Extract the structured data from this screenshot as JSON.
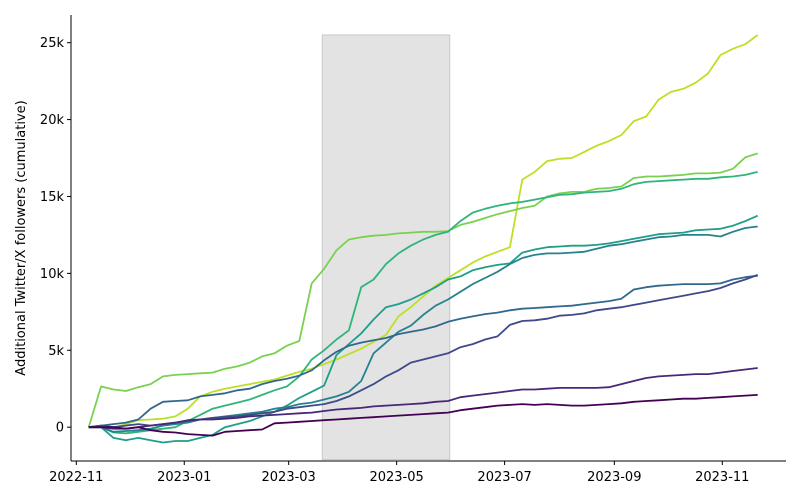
{
  "chart_data": {
    "type": "line",
    "title": "",
    "xlabel": "",
    "ylabel": "Additional Twitter/X followers (cumulative)",
    "xlim": [
      "2022-10-29",
      "2023-12-07"
    ],
    "ylim": [
      -2200,
      26800
    ],
    "x_ticks": [
      {
        "date": "2022-11-01",
        "label": "2022-11"
      },
      {
        "date": "2023-01-01",
        "label": "2023-01"
      },
      {
        "date": "2023-03-01",
        "label": "2023-03"
      },
      {
        "date": "2023-05-01",
        "label": "2023-05"
      },
      {
        "date": "2023-07-01",
        "label": "2023-07"
      },
      {
        "date": "2023-09-01",
        "label": "2023-09"
      },
      {
        "date": "2023-11-01",
        "label": "2023-11"
      }
    ],
    "y_ticks": [
      {
        "value": 0,
        "label": "0"
      },
      {
        "value": 5000,
        "label": "5k"
      },
      {
        "value": 10000,
        "label": "10k"
      },
      {
        "value": 15000,
        "label": "15k"
      },
      {
        "value": 20000,
        "label": "20k"
      },
      {
        "value": 25000,
        "label": "25k"
      }
    ],
    "highlight_span": {
      "start": "2023-03-20",
      "end": "2023-05-31",
      "color": "#e3e3e3"
    },
    "grid": false,
    "legend": "none",
    "dates": [
      "2022-11-08",
      "2022-11-15",
      "2022-11-22",
      "2022-11-29",
      "2022-12-06",
      "2022-12-13",
      "2022-12-20",
      "2022-12-27",
      "2023-01-03",
      "2023-01-10",
      "2023-01-17",
      "2023-01-24",
      "2023-01-31",
      "2023-02-07",
      "2023-02-14",
      "2023-02-21",
      "2023-02-28",
      "2023-03-07",
      "2023-03-14",
      "2023-03-21",
      "2023-03-28",
      "2023-04-04",
      "2023-04-11",
      "2023-04-18",
      "2023-04-25",
      "2023-05-02",
      "2023-05-09",
      "2023-05-16",
      "2023-05-23",
      "2023-05-30",
      "2023-06-06",
      "2023-06-13",
      "2023-06-20",
      "2023-06-27",
      "2023-07-04",
      "2023-07-11",
      "2023-07-18",
      "2023-07-25",
      "2023-08-01",
      "2023-08-08",
      "2023-08-15",
      "2023-08-22",
      "2023-08-29",
      "2023-09-05",
      "2023-09-12",
      "2023-09-19",
      "2023-09-26",
      "2023-10-03",
      "2023-10-10",
      "2023-10-17",
      "2023-10-24",
      "2023-10-31",
      "2023-11-07",
      "2023-11-14",
      "2023-11-21"
    ],
    "series": [
      {
        "color": "#bddf26",
        "values": [
          0,
          100,
          -50,
          200,
          450,
          500,
          550,
          700,
          1200,
          2000,
          2300,
          2500,
          2650,
          2800,
          2950,
          3100,
          3350,
          3600,
          3800,
          4100,
          4400,
          4750,
          5100,
          5550,
          6000,
          7200,
          7800,
          8500,
          9200,
          9700,
          10200,
          10700,
          11100,
          11400,
          11700,
          16100,
          16600,
          17300,
          17450,
          17500,
          17900,
          18300,
          18600,
          19000,
          19900,
          20200,
          21300,
          21800,
          22000,
          22400,
          23000,
          24200,
          24600,
          24900,
          25500
        ]
      },
      {
        "color": "#7ad151",
        "values": [
          0,
          2650,
          2450,
          2350,
          2600,
          2800,
          3300,
          3400,
          3450,
          3500,
          3550,
          3800,
          3950,
          4200,
          4600,
          4800,
          5300,
          5600,
          9350,
          10300,
          11500,
          12200,
          12350,
          12450,
          12500,
          12600,
          12650,
          12700,
          12700,
          12750,
          13150,
          13350,
          13600,
          13850,
          14050,
          14250,
          14400,
          15000,
          15200,
          15300,
          15300,
          15500,
          15550,
          15650,
          16200,
          16300,
          16300,
          16350,
          16400,
          16500,
          16500,
          16550,
          16800,
          17550,
          17800
        ]
      },
      {
        "color": "#2fb47c",
        "values": [
          0,
          0,
          -350,
          -400,
          -300,
          -200,
          -100,
          0,
          400,
          800,
          1200,
          1400,
          1600,
          1800,
          2100,
          2400,
          2650,
          3300,
          4400,
          5000,
          5700,
          6300,
          9100,
          9600,
          10600,
          11300,
          11800,
          12200,
          12500,
          12700,
          13400,
          13950,
          14200,
          14400,
          14550,
          14650,
          14800,
          14950,
          15100,
          15150,
          15250,
          15300,
          15350,
          15500,
          15800,
          15950,
          16000,
          16050,
          16100,
          16150,
          16150,
          16250,
          16300,
          16400,
          16600
        ]
      },
      {
        "color": "#1f9e89",
        "values": [
          0,
          0,
          -700,
          -850,
          -700,
          -850,
          -1000,
          -900,
          -900,
          -700,
          -500,
          0,
          200,
          400,
          700,
          1000,
          1400,
          1900,
          2300,
          2700,
          4700,
          5400,
          6100,
          7000,
          7800,
          8000,
          8300,
          8700,
          9100,
          9600,
          9800,
          10200,
          10400,
          10550,
          10650,
          11350,
          11550,
          11700,
          11750,
          11800,
          11800,
          11850,
          11950,
          12100,
          12250,
          12400,
          12550,
          12600,
          12650,
          12800,
          12850,
          12900,
          13100,
          13400,
          13750
        ]
      },
      {
        "color": "#26828e",
        "values": [
          0,
          0,
          -300,
          -250,
          -200,
          -100,
          100,
          200,
          300,
          500,
          600,
          700,
          800,
          900,
          1000,
          1200,
          1300,
          1500,
          1600,
          1800,
          2000,
          2300,
          3000,
          4800,
          5500,
          6200,
          6600,
          7300,
          7900,
          8300,
          8800,
          9300,
          9700,
          10100,
          10600,
          11000,
          11200,
          11300,
          11300,
          11350,
          11400,
          11600,
          11800,
          11900,
          12050,
          12200,
          12350,
          12400,
          12500,
          12500,
          12500,
          12400,
          12700,
          12950,
          13050
        ]
      },
      {
        "color": "#31688e",
        "values": [
          0,
          100,
          200,
          300,
          500,
          1200,
          1650,
          1700,
          1750,
          2000,
          2100,
          2200,
          2400,
          2500,
          2800,
          3000,
          3150,
          3350,
          3700,
          4350,
          4900,
          5300,
          5500,
          5650,
          5800,
          6050,
          6200,
          6350,
          6550,
          6850,
          7050,
          7200,
          7350,
          7450,
          7600,
          7700,
          7750,
          7800,
          7850,
          7900,
          8000,
          8100,
          8200,
          8350,
          8950,
          9100,
          9200,
          9250,
          9300,
          9300,
          9300,
          9350,
          9600,
          9750,
          9850
        ]
      },
      {
        "color": "#3e4a89",
        "values": [
          0,
          100,
          0,
          100,
          200,
          100,
          200,
          300,
          400,
          500,
          600,
          650,
          700,
          800,
          900,
          1000,
          1200,
          1300,
          1400,
          1500,
          1700,
          2000,
          2400,
          2800,
          3300,
          3700,
          4200,
          4400,
          4600,
          4800,
          5200,
          5400,
          5700,
          5900,
          6650,
          6900,
          6950,
          7050,
          7250,
          7300,
          7400,
          7600,
          7700,
          7800,
          7950,
          8100,
          8250,
          8400,
          8550,
          8700,
          8850,
          9050,
          9350,
          9600,
          9900
        ]
      },
      {
        "color": "#482878",
        "values": [
          0,
          0,
          -100,
          -100,
          0,
          100,
          200,
          300,
          450,
          500,
          500,
          550,
          600,
          700,
          750,
          800,
          850,
          900,
          950,
          1050,
          1150,
          1200,
          1250,
          1350,
          1400,
          1450,
          1500,
          1550,
          1650,
          1700,
          1950,
          2050,
          2150,
          2250,
          2350,
          2450,
          2450,
          2500,
          2550,
          2550,
          2550,
          2550,
          2600,
          2800,
          3000,
          3200,
          3300,
          3350,
          3400,
          3450,
          3450,
          3550,
          3650,
          3750,
          3850
        ]
      },
      {
        "color": "#440154",
        "values": [
          0,
          0,
          0,
          -100,
          0,
          -200,
          -300,
          -350,
          -450,
          -500,
          -550,
          -300,
          -250,
          -200,
          -150,
          250,
          300,
          350,
          400,
          450,
          500,
          550,
          600,
          650,
          700,
          750,
          800,
          850,
          900,
          950,
          1100,
          1200,
          1300,
          1400,
          1450,
          1500,
          1450,
          1500,
          1450,
          1400,
          1400,
          1450,
          1500,
          1550,
          1650,
          1700,
          1750,
          1800,
          1850,
          1850,
          1900,
          1950,
          2000,
          2050,
          2100
        ]
      }
    ]
  }
}
